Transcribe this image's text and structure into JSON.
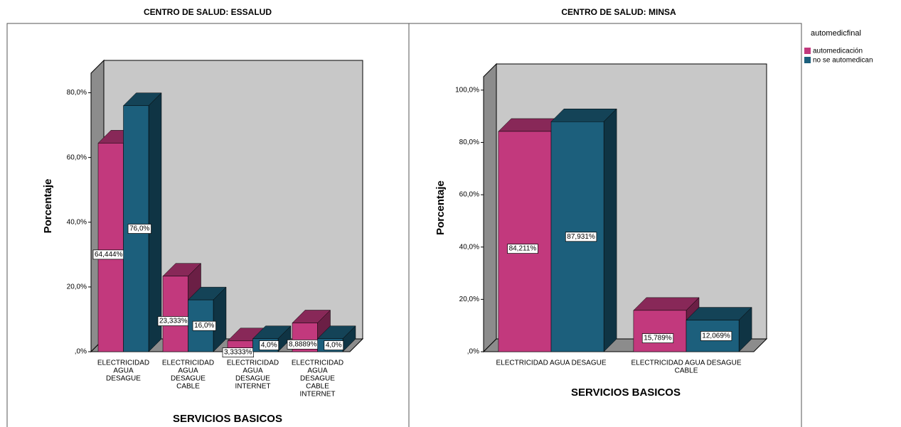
{
  "chart_data": [
    {
      "type": "bar3d",
      "title": "CENTRO DE SALUD: ESSALUD",
      "y_label": "Porcentaje",
      "x_label": "SERVICIOS BASICOS",
      "categories": [
        [
          "ELECTRICIDAD",
          "AGUA",
          "DESAGUE"
        ],
        [
          "ELECTRICIDAD",
          "AGUA",
          "DESAGUE",
          "CABLE"
        ],
        [
          "ELECTRICIDAD",
          "AGUA",
          "DESAGUE",
          "INTERNET"
        ],
        [
          "ELECTRICIDAD",
          "AGUA",
          "DESAGUE",
          "CABLE",
          "INTERNET"
        ]
      ],
      "ylim": [
        0,
        90
      ],
      "yticks": [
        {
          "value": 0,
          "label": ",0%"
        },
        {
          "value": 20,
          "label": "20,0%"
        },
        {
          "value": 40,
          "label": "40,0%"
        },
        {
          "value": 60,
          "label": "60,0%"
        },
        {
          "value": 80,
          "label": "80,0%"
        }
      ],
      "legend_title": "automedicfinal",
      "series": [
        {
          "name": "automedicación",
          "color": "#c2397d",
          "values": [
            64.444,
            23.333,
            3.3333,
            8.8889
          ],
          "value_labels": [
            "64,444%",
            "23,333%",
            "3,3333%",
            "8,8889%"
          ]
        },
        {
          "name": "no se automedican",
          "color": "#1c5f7c",
          "values": [
            76.0,
            16.0,
            4.0,
            4.0
          ],
          "value_labels": [
            "76,0%",
            "16,0%",
            "4,0%",
            "4,0%"
          ]
        }
      ]
    },
    {
      "type": "bar3d",
      "title": "CENTRO DE SALUD: MINSA",
      "y_label": "Porcentaje",
      "x_label": "SERVICIOS BASICOS",
      "categories": [
        [
          "ELECTRICIDAD AGUA DESAGUE"
        ],
        [
          "ELECTRICIDAD AGUA DESAGUE",
          "CABLE"
        ]
      ],
      "ylim": [
        0,
        110
      ],
      "yticks": [
        {
          "value": 0,
          "label": ",0%"
        },
        {
          "value": 20,
          "label": "20,0%"
        },
        {
          "value": 40,
          "label": "40,0%"
        },
        {
          "value": 60,
          "label": "60,0%"
        },
        {
          "value": 80,
          "label": "80,0%"
        },
        {
          "value": 100,
          "label": "100,0%"
        }
      ],
      "series": [
        {
          "color": "#c2397d",
          "values": [
            84.211,
            15.789
          ],
          "value_labels": [
            "84,211%",
            "15,789%"
          ]
        },
        {
          "color": "#1c5f7c",
          "values": [
            87.931,
            12.069
          ],
          "value_labels": [
            "87,931%",
            "12,069%"
          ]
        }
      ]
    }
  ]
}
